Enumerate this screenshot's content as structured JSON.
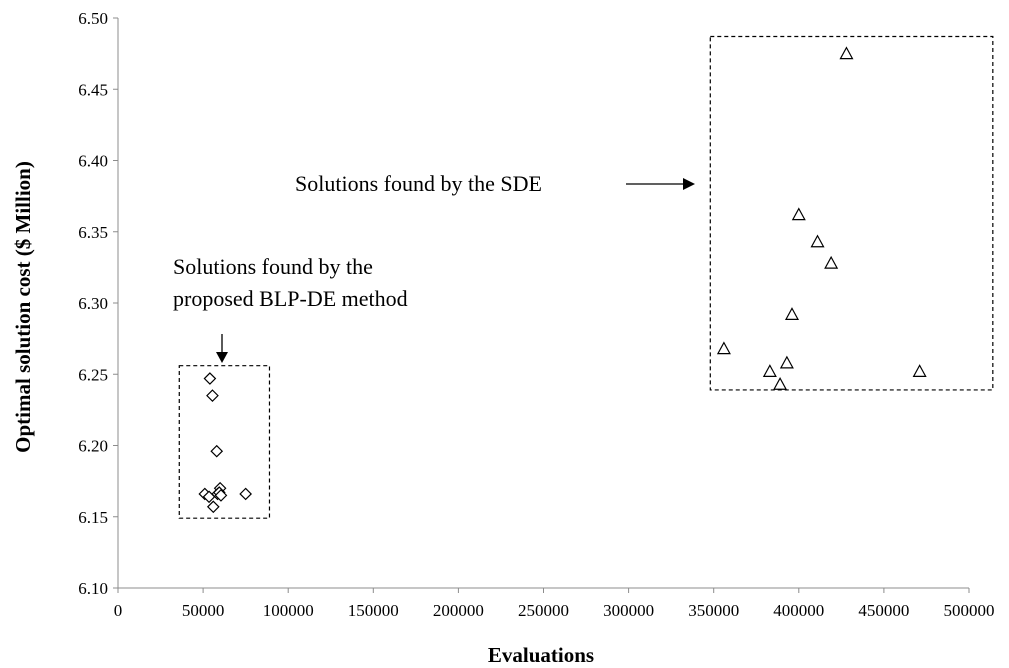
{
  "chart_data": {
    "type": "scatter",
    "title": "",
    "xlabel": "Evaluations",
    "ylabel": "Optimal solution cost ($ Million)",
    "xlim": [
      0,
      500000
    ],
    "ylim": [
      6.1,
      6.5
    ],
    "x_ticks": [
      0,
      50000,
      100000,
      150000,
      200000,
      250000,
      300000,
      350000,
      400000,
      450000,
      500000
    ],
    "y_ticks": [
      6.1,
      6.15,
      6.2,
      6.25,
      6.3,
      6.35,
      6.4,
      6.45,
      6.5
    ],
    "x_tick_labels": [
      "0",
      "50000",
      "100000",
      "150000",
      "200000",
      "250000",
      "300000",
      "350000",
      "400000",
      "450000",
      "500000"
    ],
    "y_tick_labels": [
      "6.10",
      "6.15",
      "6.20",
      "6.25",
      "6.30",
      "6.35",
      "6.40",
      "6.45",
      "6.50"
    ],
    "grid": false,
    "series": [
      {
        "marker": "diamond",
        "x": [
          54000,
          55500,
          58000,
          60000,
          51000,
          53500,
          58500,
          59500,
          60500,
          56000,
          75000
        ],
        "y": [
          6.247,
          6.235,
          6.196,
          6.17,
          6.166,
          6.164,
          6.166,
          6.167,
          6.165,
          6.157,
          6.166
        ]
      },
      {
        "marker": "triangle",
        "x": [
          428000,
          400000,
          411000,
          419000,
          396000,
          356000,
          393000,
          383000,
          389000,
          471000
        ],
        "y": [
          6.475,
          6.362,
          6.343,
          6.328,
          6.292,
          6.268,
          6.258,
          6.252,
          6.243,
          6.252
        ]
      }
    ],
    "annotations": {
      "blp_line1": "Solutions found by the",
      "blp_line2": "proposed BLP-DE method",
      "sde": "Solutions found by the SDE"
    },
    "boxes": [
      {
        "x": [
          36000,
          89000
        ],
        "y": [
          6.149,
          6.256
        ]
      },
      {
        "x": [
          348000,
          514000
        ],
        "y": [
          6.239,
          6.487
        ]
      }
    ]
  }
}
